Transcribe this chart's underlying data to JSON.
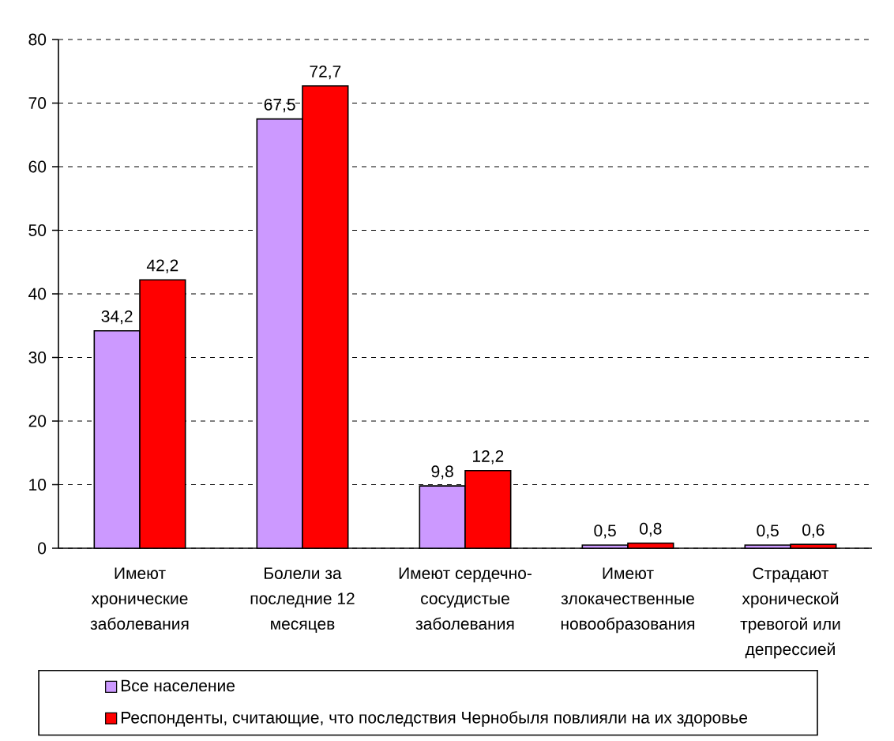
{
  "chart_data": {
    "type": "bar",
    "categories": [
      "Имеют хронические заболевания",
      "Болели за последние 12 месяцев",
      "Имеют сердечно-сосудистые заболевания",
      "Имеют злокачественные новообразования",
      "Страдают хронической тревогой или депрессией"
    ],
    "series": [
      {
        "name": "Все население",
        "color": "#cc99ff",
        "values": [
          34.2,
          67.5,
          9.8,
          0.5,
          0.5
        ],
        "value_labels": [
          "34,2",
          "67,5",
          "9,8",
          "0,5",
          "0,5"
        ]
      },
      {
        "name": "Респонденты, считающие, что последствия Чернобыля повлияли на их здоровье",
        "color": "#ff0000",
        "values": [
          42.2,
          72.7,
          12.2,
          0.8,
          0.6
        ],
        "value_labels": [
          "42,2",
          "72,7",
          "12,2",
          "0,8",
          "0,6"
        ]
      }
    ],
    "ylim": [
      0,
      80
    ],
    "yticks": [
      0,
      10,
      20,
      30,
      40,
      50,
      60,
      70,
      80
    ],
    "grid": "y",
    "legend": "bottom"
  }
}
